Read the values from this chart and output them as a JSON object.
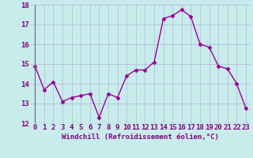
{
  "x": [
    0,
    1,
    2,
    3,
    4,
    5,
    6,
    7,
    8,
    9,
    10,
    11,
    12,
    13,
    14,
    15,
    16,
    17,
    18,
    19,
    20,
    21,
    22,
    23
  ],
  "y": [
    14.9,
    13.7,
    14.1,
    13.1,
    13.3,
    13.4,
    13.5,
    12.3,
    13.5,
    13.3,
    14.4,
    14.7,
    14.7,
    15.1,
    17.3,
    17.45,
    17.75,
    17.4,
    16.0,
    15.85,
    14.9,
    14.75,
    14.0,
    12.75
  ],
  "line_color": "#990099",
  "marker": "D",
  "marker_size": 2.5,
  "bg_color": "#c8ecec",
  "grid_color": "#aaaacc",
  "xlabel": "Windchill (Refroidissement éolien,°C)",
  "ylim": [
    12,
    18
  ],
  "xlim": [
    -0.5,
    23.5
  ],
  "yticks": [
    12,
    13,
    14,
    15,
    16,
    17,
    18
  ],
  "xticks": [
    0,
    1,
    2,
    3,
    4,
    5,
    6,
    7,
    8,
    9,
    10,
    11,
    12,
    13,
    14,
    15,
    16,
    17,
    18,
    19,
    20,
    21,
    22,
    23
  ],
  "xlabel_fontsize": 6.5,
  "tick_fontsize": 6.5,
  "xlabel_color": "#800080",
  "tick_color": "#800080"
}
